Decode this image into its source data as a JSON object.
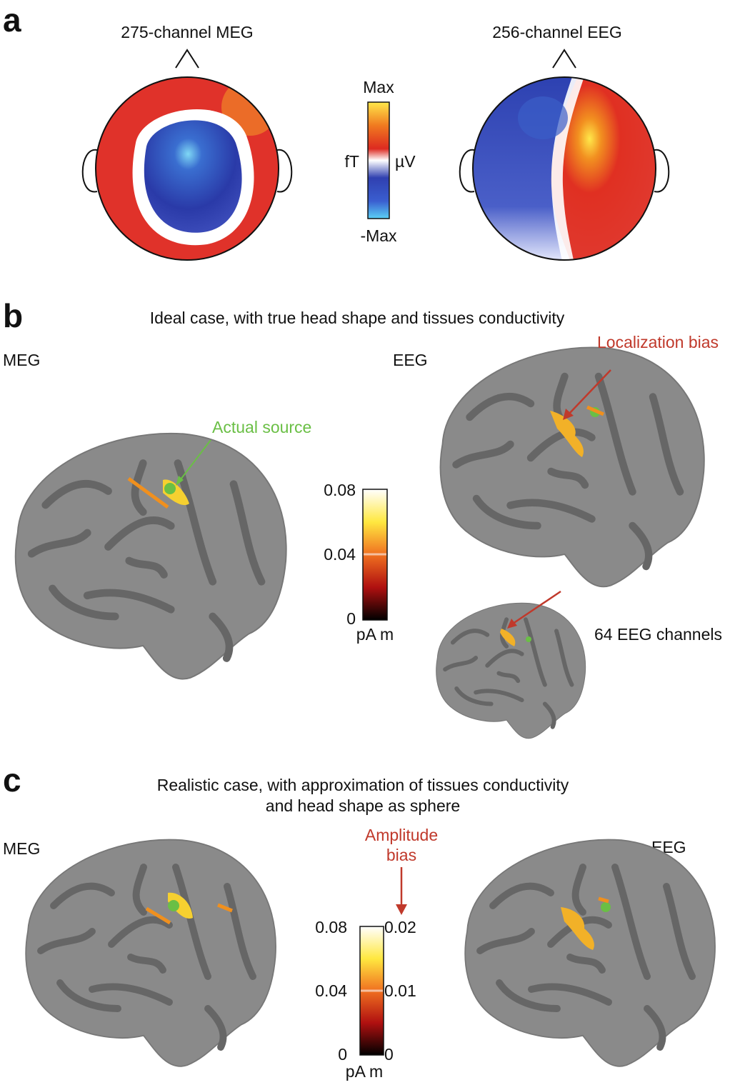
{
  "panels": {
    "a": {
      "label": "a",
      "meg_title": "275-channel MEG",
      "eeg_title": "256-channel EEG",
      "colorbar": {
        "max": "Max",
        "min": "-Max",
        "left_unit": "fT",
        "right_unit": "µV"
      }
    },
    "b": {
      "label": "b",
      "title": "Ideal case, with true head shape and tissues conductivity",
      "meg_label": "MEG",
      "eeg_label": "EEG",
      "annotations": {
        "actual_source": "Actual source",
        "localization_bias": "Localization bias",
        "eeg64": "64 EEG channels"
      },
      "colorbar": {
        "ticks": [
          "0.08",
          "0.04",
          "0"
        ],
        "unit": "pA m"
      }
    },
    "c": {
      "label": "c",
      "title_lines": [
        "Realistic case, with approximation of tissues conductivity",
        "and head shape as sphere"
      ],
      "meg_label": "MEG",
      "eeg_label": "EEG",
      "amplitude_bias_lines": [
        "Amplitude",
        "bias"
      ],
      "colorbar": {
        "left_ticks": [
          "0.08",
          "0.04",
          "0"
        ],
        "right_ticks": [
          "0.02",
          "0.01",
          "0"
        ],
        "unit": "pA m"
      }
    }
  }
}
